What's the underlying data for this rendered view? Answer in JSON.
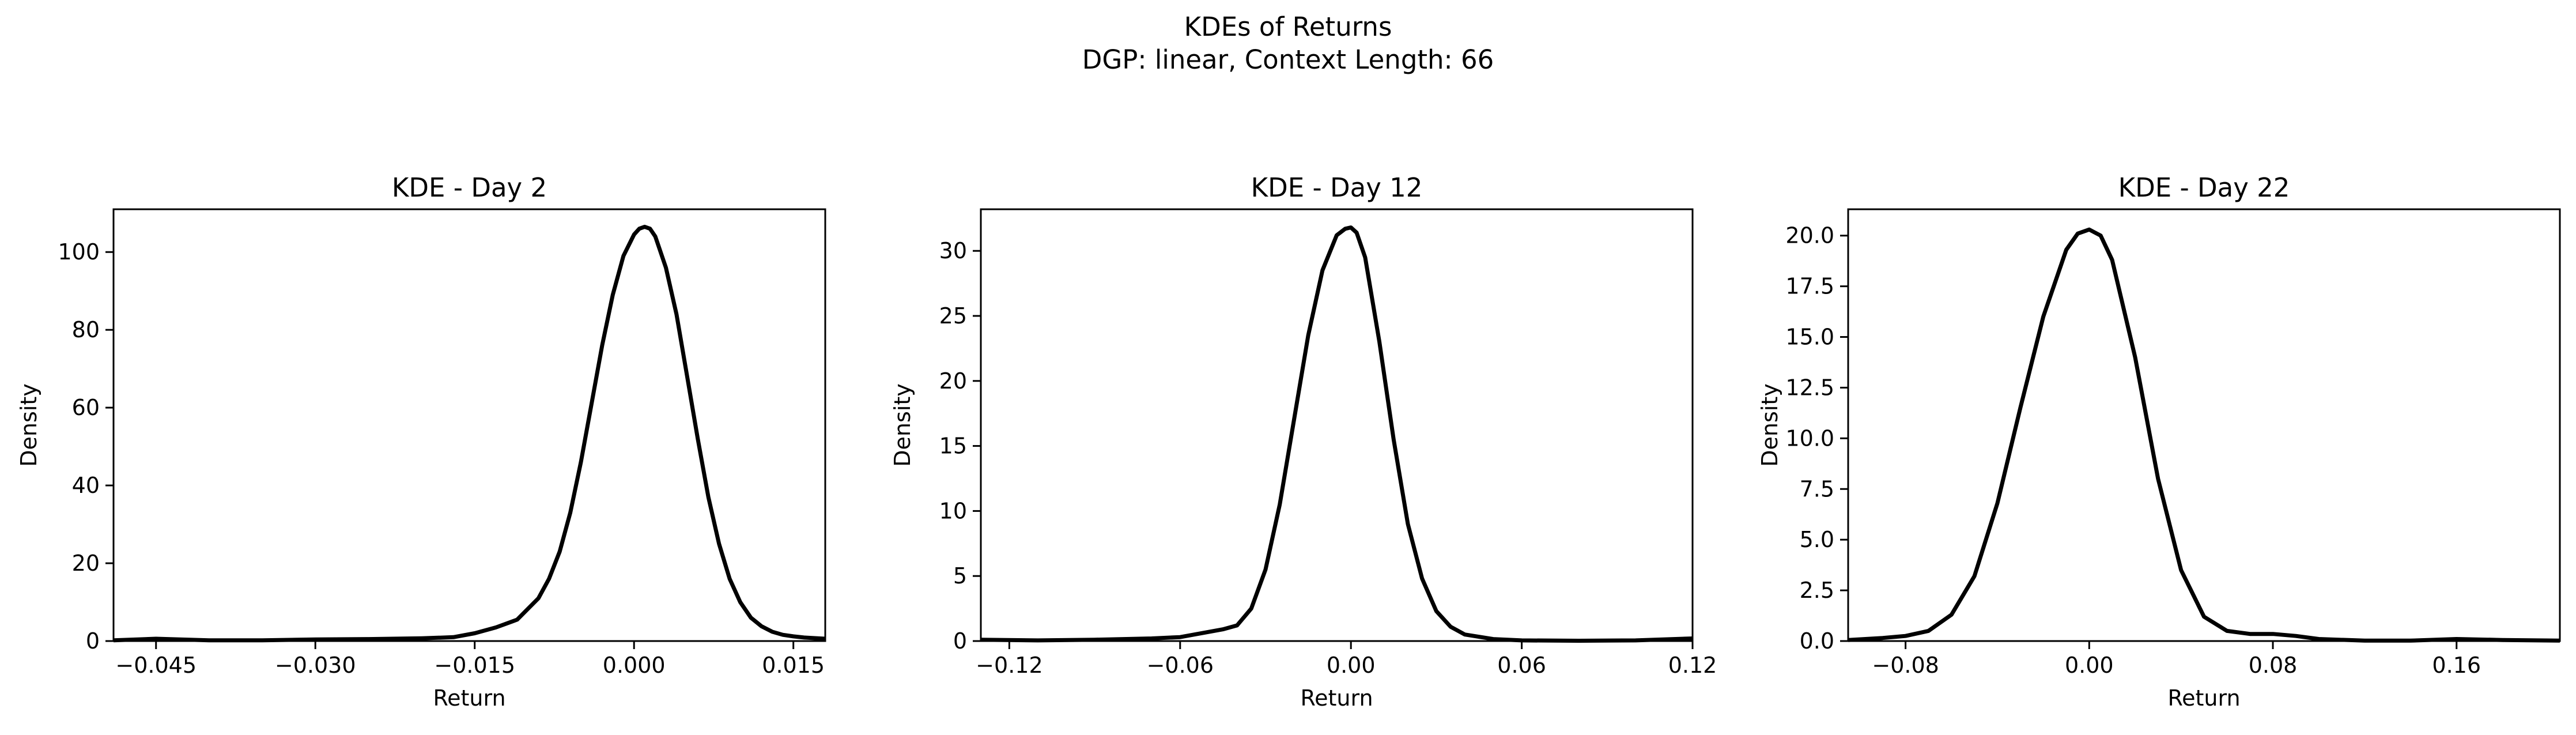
{
  "figure": {
    "title_line1": "KDEs of Returns",
    "title_line2": "DGP: linear, Context Length: 66"
  },
  "chart_data": [
    {
      "type": "line",
      "title": "KDE - Day 2",
      "xlabel": "Return",
      "ylabel": "Density",
      "xlim": [
        -0.049,
        0.018
      ],
      "ylim": [
        0,
        111
      ],
      "xticks": [
        -0.045,
        -0.03,
        -0.015,
        0.0,
        0.015
      ],
      "xtick_labels": [
        "−0.045",
        "−0.030",
        "−0.015",
        "0.000",
        "0.015"
      ],
      "yticks": [
        0,
        20,
        40,
        60,
        80,
        100
      ],
      "ytick_labels": [
        "0",
        "20",
        "40",
        "60",
        "80",
        "100"
      ],
      "grid": false,
      "series": [
        {
          "color": "#000000",
          "x": [
            -0.049,
            -0.045,
            -0.04,
            -0.035,
            -0.03,
            -0.025,
            -0.02,
            -0.017,
            -0.015,
            -0.013,
            -0.011,
            -0.009,
            -0.008,
            -0.007,
            -0.006,
            -0.005,
            -0.004,
            -0.003,
            -0.002,
            -0.001,
            0.0,
            0.0005,
            0.001,
            0.0015,
            0.002,
            0.003,
            0.004,
            0.005,
            0.006,
            0.007,
            0.008,
            0.009,
            0.01,
            0.011,
            0.012,
            0.013,
            0.014,
            0.015,
            0.016,
            0.018
          ],
          "y": [
            0.2,
            0.6,
            0.2,
            0.2,
            0.4,
            0.5,
            0.7,
            1.0,
            2.0,
            3.5,
            5.5,
            11.0,
            16.0,
            23.0,
            33.0,
            46.0,
            61.0,
            76.0,
            89.0,
            99.0,
            104.5,
            106.0,
            106.5,
            106.0,
            104.0,
            96.0,
            84.0,
            68.0,
            52.0,
            37.0,
            25.0,
            16.0,
            10.0,
            6.0,
            3.8,
            2.4,
            1.6,
            1.2,
            0.9,
            0.6
          ]
        }
      ]
    },
    {
      "type": "line",
      "title": "KDE - Day 12",
      "xlabel": "Return",
      "ylabel": "Density",
      "xlim": [
        -0.13,
        0.12
      ],
      "ylim": [
        0,
        33.2
      ],
      "xticks": [
        -0.12,
        -0.06,
        0.0,
        0.06,
        0.12
      ],
      "xtick_labels": [
        "−0.12",
        "−0.06",
        "0.00",
        "0.06",
        "0.12"
      ],
      "yticks": [
        0,
        5,
        10,
        15,
        20,
        25,
        30
      ],
      "ytick_labels": [
        "0",
        "5",
        "10",
        "15",
        "20",
        "25",
        "30"
      ],
      "grid": false,
      "series": [
        {
          "color": "#000000",
          "x": [
            -0.13,
            -0.11,
            -0.09,
            -0.07,
            -0.06,
            -0.05,
            -0.045,
            -0.04,
            -0.035,
            -0.03,
            -0.025,
            -0.02,
            -0.015,
            -0.01,
            -0.005,
            -0.002,
            0.0,
            0.002,
            0.005,
            0.01,
            0.015,
            0.02,
            0.025,
            0.03,
            0.035,
            0.04,
            0.05,
            0.06,
            0.08,
            0.1,
            0.12
          ],
          "y": [
            0.1,
            0.05,
            0.1,
            0.2,
            0.3,
            0.7,
            0.9,
            1.2,
            2.5,
            5.5,
            10.5,
            17.0,
            23.5,
            28.5,
            31.2,
            31.7,
            31.8,
            31.4,
            29.5,
            23.0,
            15.5,
            9.0,
            4.8,
            2.3,
            1.1,
            0.5,
            0.15,
            0.05,
            0.02,
            0.05,
            0.2
          ]
        }
      ]
    },
    {
      "type": "line",
      "title": "KDE - Day 22",
      "xlabel": "Return",
      "ylabel": "Density",
      "xlim": [
        -0.105,
        0.205
      ],
      "ylim": [
        0,
        21.3
      ],
      "xticks": [
        -0.08,
        0.0,
        0.08,
        0.16
      ],
      "xtick_labels": [
        "−0.08",
        "0.00",
        "0.08",
        "0.16"
      ],
      "yticks": [
        0,
        2.5,
        5,
        7.5,
        10,
        12.5,
        15,
        17.5,
        20
      ],
      "ytick_labels": [
        "0.0",
        "2.5",
        "5.0",
        "7.5",
        "10.0",
        "12.5",
        "15.0",
        "17.5",
        "20.0"
      ],
      "grid": false,
      "series": [
        {
          "color": "#000000",
          "x": [
            -0.105,
            -0.09,
            -0.08,
            -0.07,
            -0.06,
            -0.05,
            -0.04,
            -0.03,
            -0.02,
            -0.01,
            -0.005,
            0.0,
            0.005,
            0.01,
            0.02,
            0.03,
            0.04,
            0.05,
            0.06,
            0.07,
            0.08,
            0.09,
            0.1,
            0.12,
            0.14,
            0.16,
            0.18,
            0.205
          ],
          "y": [
            0.05,
            0.15,
            0.25,
            0.5,
            1.3,
            3.2,
            6.8,
            11.5,
            16.0,
            19.3,
            20.1,
            20.3,
            20.0,
            18.8,
            14.0,
            8.0,
            3.5,
            1.2,
            0.5,
            0.35,
            0.35,
            0.25,
            0.1,
            0.02,
            0.02,
            0.1,
            0.05,
            0.02
          ]
        }
      ]
    }
  ]
}
